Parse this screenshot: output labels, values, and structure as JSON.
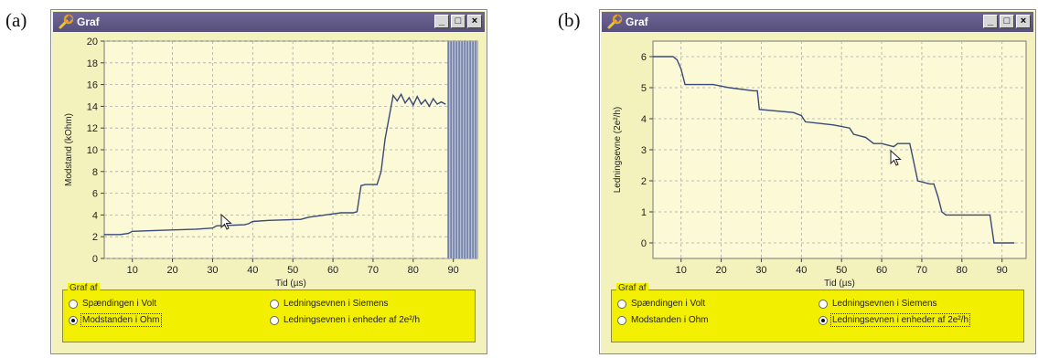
{
  "panels": [
    {
      "label": "(a)",
      "window": {
        "title": "Graf",
        "icon": "wrench-icon",
        "title_color": "#56507a",
        "buttons": [
          {
            "name": "minimize",
            "glyph": "_"
          },
          {
            "name": "maximize",
            "glyph": "□"
          },
          {
            "name": "close",
            "glyph": "×"
          }
        ]
      },
      "chart_data": {
        "type": "line",
        "title": "",
        "xlabel": "Tid (µs)",
        "ylabel": "Modstand (kOhm)",
        "xlim": [
          3,
          96
        ],
        "ylim": [
          0,
          20
        ],
        "xticks": [
          10,
          20,
          30,
          40,
          50,
          60,
          70,
          80,
          90
        ],
        "yticks": [
          0,
          2,
          4,
          6,
          8,
          10,
          12,
          14,
          16,
          18,
          20
        ],
        "grid": true,
        "line_color": "#3a4a78",
        "series": [
          {
            "x": [
              3,
              7,
              9,
              10,
              18,
              26,
              30,
              31,
              38,
              39,
              40,
              44,
              52,
              54,
              58,
              62,
              65,
              66,
              67,
              68,
              71,
              72,
              73,
              74,
              75,
              76,
              77,
              78,
              79,
              80,
              81,
              82,
              83,
              84,
              85,
              86,
              87,
              88
            ],
            "y": [
              2.2,
              2.2,
              2.3,
              2.5,
              2.6,
              2.7,
              2.8,
              3.0,
              3.1,
              3.2,
              3.4,
              3.5,
              3.6,
              3.8,
              4.0,
              4.2,
              4.2,
              4.3,
              6.7,
              6.8,
              6.8,
              8.0,
              11.0,
              13.0,
              15.0,
              14.5,
              15.1,
              14.3,
              14.8,
              14.1,
              14.9,
              14.2,
              14.6,
              14.0,
              14.7,
              14.2,
              14.4,
              14.2
            ]
          }
        ],
        "hatched_region": {
          "x_from": 88.5,
          "x_to": 96,
          "color": "#4a5a8a"
        }
      },
      "option_group": {
        "title": "Graf af",
        "options": [
          {
            "label": "Spændingen i Volt",
            "checked": false,
            "focused": false
          },
          {
            "label": "Ledningsevnen i Siemens",
            "checked": false,
            "focused": false
          },
          {
            "label": "Modstanden i Ohm",
            "checked": true,
            "focused": true
          },
          {
            "label": "Ledningsevnen i enheder af 2e²/h",
            "checked": false,
            "focused": false
          }
        ]
      }
    },
    {
      "label": "(b)",
      "window": {
        "title": "Graf",
        "icon": "wrench-icon",
        "title_color": "#56507a",
        "buttons": [
          {
            "name": "minimize",
            "glyph": "_"
          },
          {
            "name": "maximize",
            "glyph": "□"
          },
          {
            "name": "close",
            "glyph": "×"
          }
        ]
      },
      "chart_data": {
        "type": "line",
        "title": "",
        "xlabel": "Tid (µs)",
        "ylabel": "Ledningsevne (2e²/h)",
        "xlim": [
          3,
          96
        ],
        "ylim": [
          -0.5,
          6.5
        ],
        "xticks": [
          10,
          20,
          30,
          40,
          50,
          60,
          70,
          80,
          90
        ],
        "yticks": [
          0,
          1,
          2,
          3,
          4,
          5,
          6
        ],
        "grid": true,
        "line_color": "#3a4a78",
        "series": [
          {
            "x": [
              3,
              8,
              9,
              10,
              11,
              18,
              22,
              28,
              29,
              29.5,
              38,
              40,
              41,
              48,
              52,
              53,
              56,
              58,
              60,
              63,
              64,
              67,
              68,
              69,
              72,
              73,
              74,
              75,
              76,
              86,
              87,
              88,
              93
            ],
            "y": [
              6.0,
              6.0,
              5.9,
              5.6,
              5.1,
              5.1,
              5.0,
              4.9,
              4.9,
              4.3,
              4.2,
              4.1,
              3.9,
              3.8,
              3.7,
              3.5,
              3.4,
              3.2,
              3.2,
              3.1,
              3.2,
              3.2,
              2.6,
              2.0,
              1.9,
              1.9,
              1.5,
              1.0,
              0.9,
              0.9,
              0.9,
              0.0,
              0.0
            ]
          }
        ]
      },
      "option_group": {
        "title": "Graf af",
        "options": [
          {
            "label": "Spændingen i Volt",
            "checked": false,
            "focused": false
          },
          {
            "label": "Ledningsevnen i Siemens",
            "checked": false,
            "focused": false
          },
          {
            "label": "Modstanden i Ohm",
            "checked": false,
            "focused": false
          },
          {
            "label": "Ledningsevnen i enheder af 2e²/h",
            "checked": true,
            "focused": true
          }
        ]
      }
    }
  ]
}
